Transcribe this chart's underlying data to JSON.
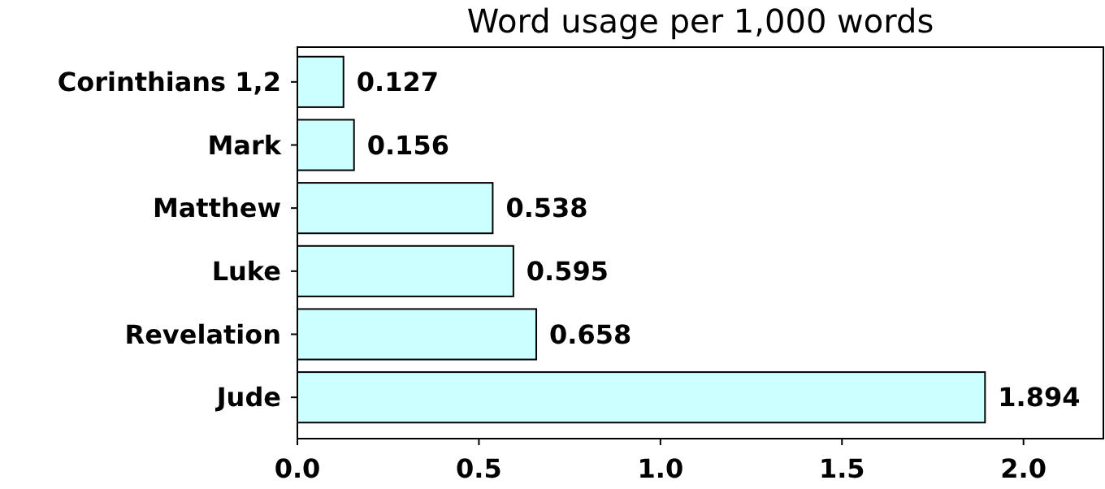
{
  "chart_data": {
    "type": "bar",
    "orientation": "horizontal",
    "title": "Word usage per 1,000 words",
    "categories": [
      "Corinthians 1,2",
      "Mark",
      "Matthew",
      "Luke",
      "Revelation",
      "Jude"
    ],
    "values": [
      0.127,
      0.156,
      0.538,
      0.595,
      0.658,
      1.894
    ],
    "color": "#ccffff",
    "xlim": [
      0,
      2.22
    ],
    "xticks": [
      {
        "value": 0,
        "label": "0.0"
      },
      {
        "value": 0.5,
        "label": "0.5"
      },
      {
        "value": 1,
        "label": "1.0"
      },
      {
        "value": 1.5,
        "label": "1.5"
      },
      {
        "value": 2,
        "label": "2.0"
      }
    ],
    "data_labels": true,
    "grid": false
  }
}
